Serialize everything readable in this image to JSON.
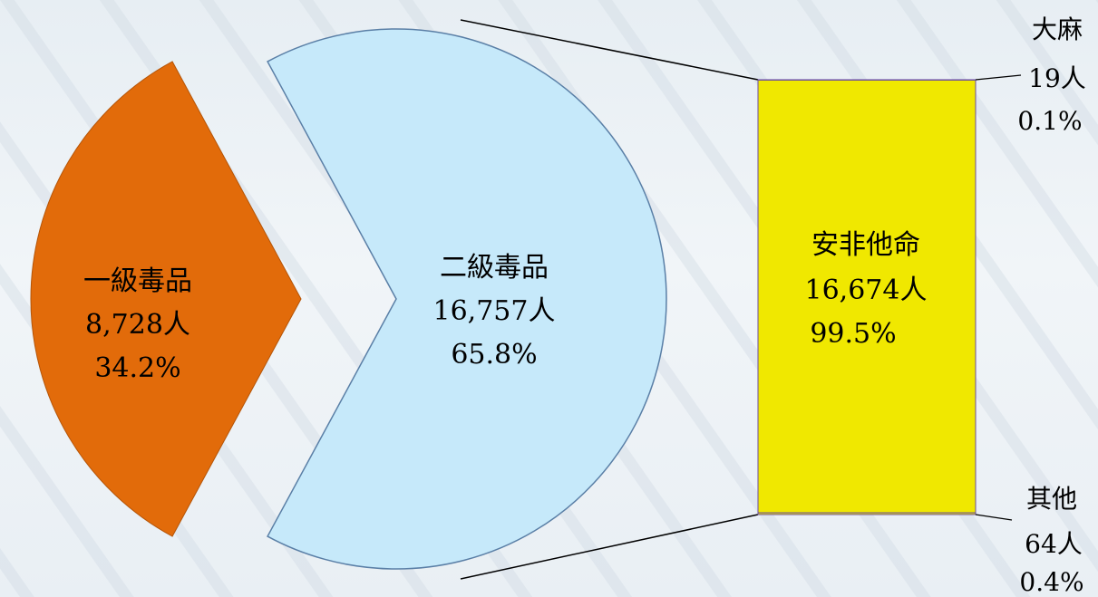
{
  "chart_data": {
    "type": "bar-of-pie",
    "pie": [
      {
        "name": "一級毒品",
        "count": "8,728人",
        "percent": "34.2%",
        "value": 34.2,
        "color": "#e26b0a"
      },
      {
        "name": "二級毒品",
        "count": "16,757人",
        "percent": "65.8%",
        "value": 65.8,
        "color": "#c6e9fa"
      }
    ],
    "bar": [
      {
        "name": "大麻",
        "count": "19人",
        "percent": "0.1%",
        "value": 0.1,
        "color": "#f0e800"
      },
      {
        "name": "安非他命",
        "count": "16,674人",
        "percent": "99.5%",
        "value": 99.5,
        "color": "#f0e800"
      },
      {
        "name": "其他",
        "count": "64人",
        "percent": "0.4%",
        "value": 0.4,
        "color": "#f0e800"
      }
    ]
  }
}
